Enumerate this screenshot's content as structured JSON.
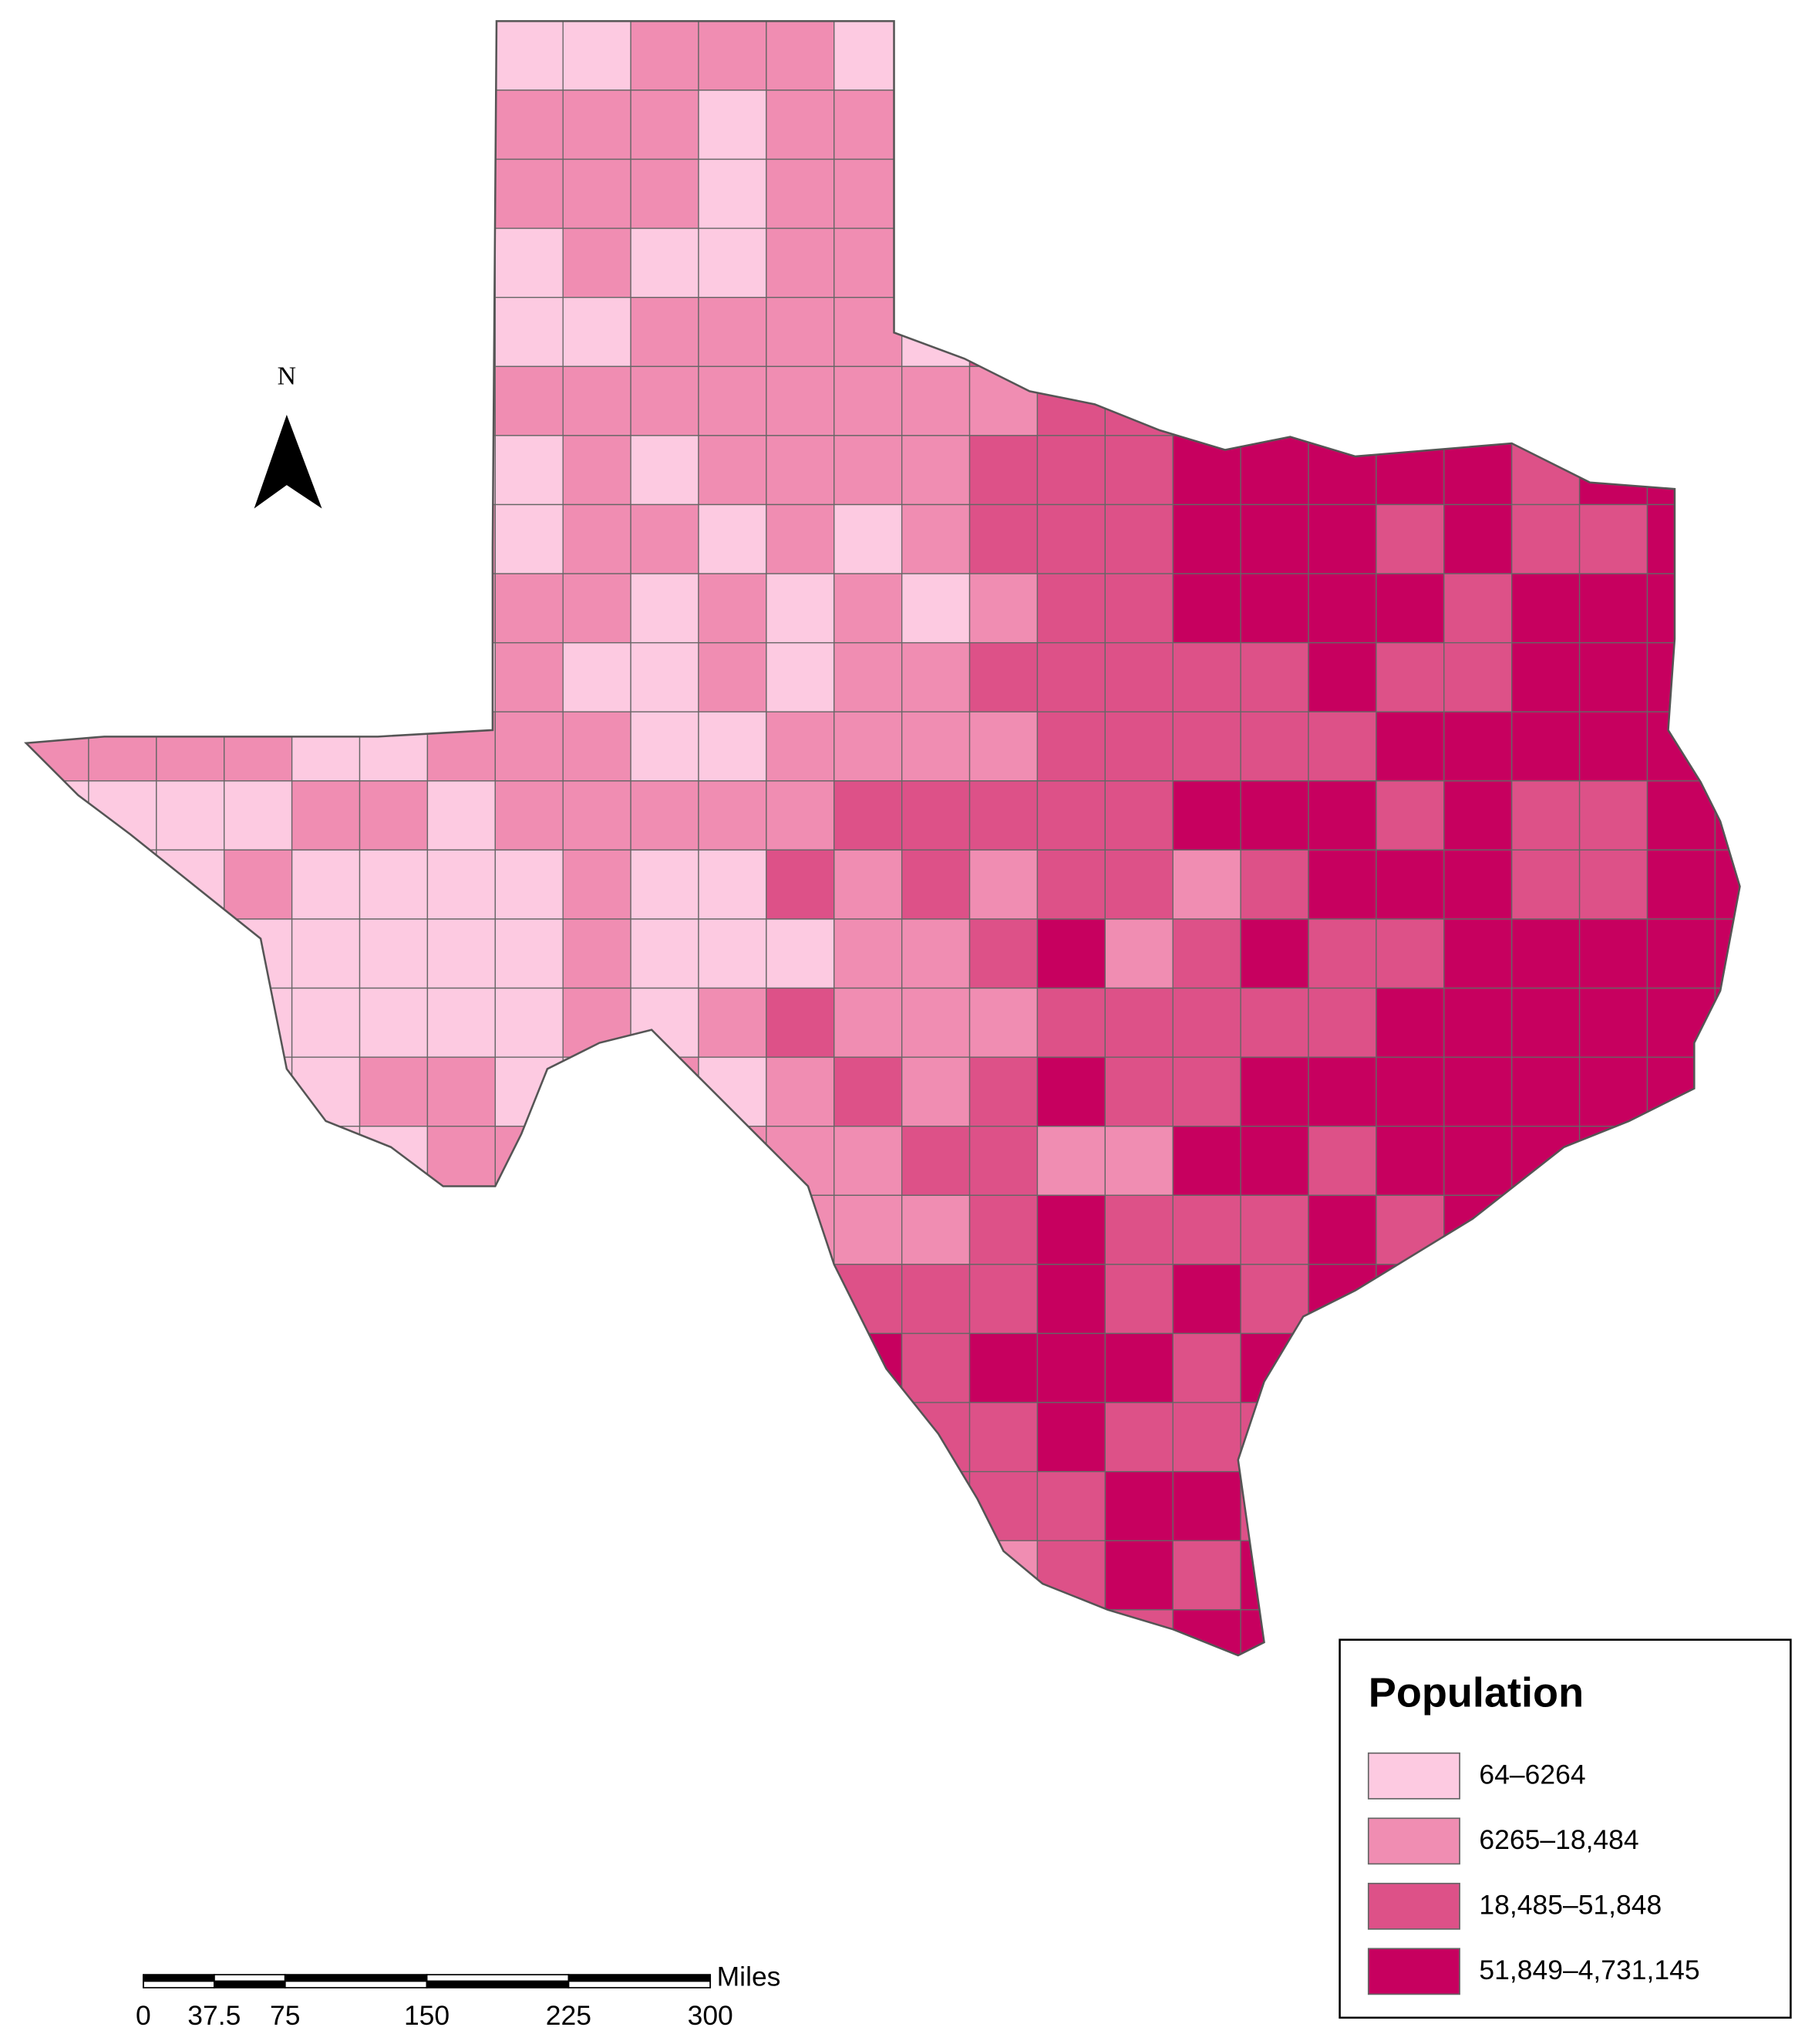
{
  "map": {
    "north_label": "N",
    "legend": {
      "title": "Population",
      "classes": [
        {
          "label": "64–6264",
          "color": "#fdcae1"
        },
        {
          "label": "6265–18,484",
          "color": "#f08db2"
        },
        {
          "label": "18,485–51,848",
          "color": "#dd5188"
        },
        {
          "label": "51,849–4,731,145",
          "color": "#c7005f"
        }
      ]
    },
    "scale_bar": {
      "unit": "Miles",
      "ticks": [
        0,
        37.5,
        75,
        150,
        225,
        300
      ]
    }
  }
}
